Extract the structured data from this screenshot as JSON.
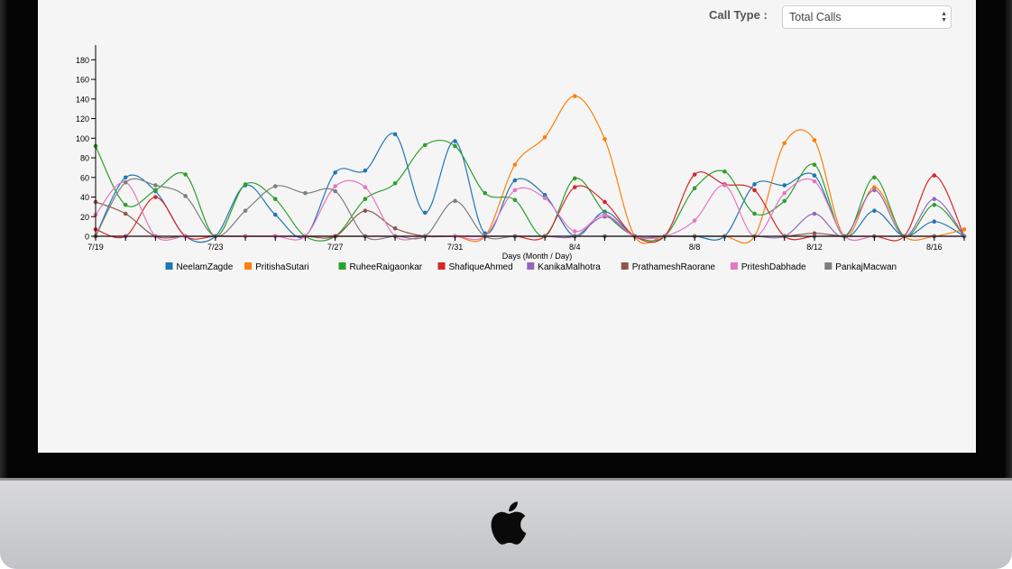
{
  "controls": {
    "call_type_label": "Call Type :",
    "call_type_value": "Total Calls"
  },
  "colors": {
    "NeelamZagde": "#1f77b4",
    "PritishaSutari": "#ff7f0e",
    "RuheeRaigaonkar": "#2ca02c",
    "ShafiqueAhmed": "#d62728",
    "KanikaMalhotra": "#9467bd",
    "PrathameshRaorane": "#8c564b",
    "PriteshDabhade": "#e377c2",
    "PankajMacwan": "#7f7f7f"
  },
  "chart_data": {
    "type": "line",
    "title": "",
    "xlabel": "Days (Month / Day)",
    "ylabel": "",
    "ylim": [
      0,
      195
    ],
    "yticks": [
      0,
      20,
      40,
      60,
      80,
      100,
      120,
      140,
      160,
      180
    ],
    "x": [
      "7/19",
      "7/20",
      "7/21",
      "7/22",
      "7/23",
      "7/24",
      "7/25",
      "7/26",
      "7/27",
      "7/28",
      "7/29",
      "7/30",
      "7/31",
      "8/1",
      "8/2",
      "8/3",
      "8/4",
      "8/5",
      "8/6",
      "8/7",
      "8/8",
      "8/9",
      "8/10",
      "8/11",
      "8/12",
      "8/13",
      "8/14",
      "8/15",
      "8/16",
      "8/17"
    ],
    "xticks": [
      "7/19",
      "7/23",
      "7/27",
      "7/31",
      "8/4",
      "8/8",
      "8/12",
      "8/16"
    ],
    "legend_position": "bottom",
    "series": [
      {
        "name": "NeelamZagde",
        "values": [
          0,
          60,
          46,
          0,
          0,
          52,
          22,
          0,
          65,
          67,
          104,
          24,
          97,
          3,
          57,
          42,
          0,
          25,
          0,
          0,
          0,
          0,
          53,
          52,
          62,
          0,
          26,
          0,
          15,
          0
        ]
      },
      {
        "name": "PritishaSutari",
        "values": [
          0,
          0,
          0,
          0,
          0,
          0,
          0,
          0,
          0,
          0,
          0,
          0,
          0,
          0,
          73,
          101,
          143,
          99,
          0,
          0,
          0,
          0,
          0,
          95,
          98,
          0,
          50,
          0,
          0,
          7
        ]
      },
      {
        "name": "RuheeRaigaonkar",
        "values": [
          92,
          32,
          47,
          63,
          0,
          53,
          38,
          0,
          0,
          38,
          54,
          93,
          92,
          44,
          37,
          0,
          59,
          24,
          0,
          0,
          49,
          66,
          23,
          36,
          73,
          0,
          60,
          0,
          32,
          0
        ]
      },
      {
        "name": "ShafiqueAhmed",
        "values": [
          7,
          0,
          40,
          0,
          0,
          0,
          0,
          0,
          0,
          0,
          0,
          0,
          0,
          0,
          0,
          0,
          50,
          35,
          0,
          0,
          63,
          53,
          47,
          0,
          0,
          0,
          0,
          0,
          62,
          0
        ]
      },
      {
        "name": "KanikaMalhotra",
        "values": [
          0,
          0,
          0,
          0,
          0,
          0,
          0,
          0,
          0,
          0,
          0,
          0,
          0,
          0,
          0,
          0,
          0,
          20,
          0,
          0,
          0,
          0,
          0,
          0,
          23,
          0,
          47,
          0,
          38,
          0
        ]
      },
      {
        "name": "PrathameshRaorane",
        "values": [
          35,
          23,
          0,
          0,
          0,
          0,
          0,
          0,
          0,
          26,
          8,
          0,
          0,
          0,
          0,
          0,
          0,
          0,
          0,
          0,
          0,
          0,
          0,
          0,
          3,
          0,
          0,
          0,
          0,
          0
        ]
      },
      {
        "name": "PriteshDabhade",
        "values": [
          22,
          55,
          0,
          0,
          0,
          0,
          0,
          0,
          51,
          50,
          0,
          0,
          0,
          0,
          47,
          39,
          5,
          22,
          0,
          0,
          16,
          52,
          0,
          44,
          56,
          0,
          0,
          0,
          0,
          0
        ]
      },
      {
        "name": "PankajMacwan",
        "values": [
          0,
          55,
          52,
          41,
          0,
          26,
          51,
          44,
          46,
          0,
          0,
          0,
          36,
          0,
          0,
          0,
          0,
          0,
          0,
          0,
          0,
          0,
          0,
          0,
          0,
          0,
          0,
          0,
          0,
          0
        ]
      }
    ]
  }
}
